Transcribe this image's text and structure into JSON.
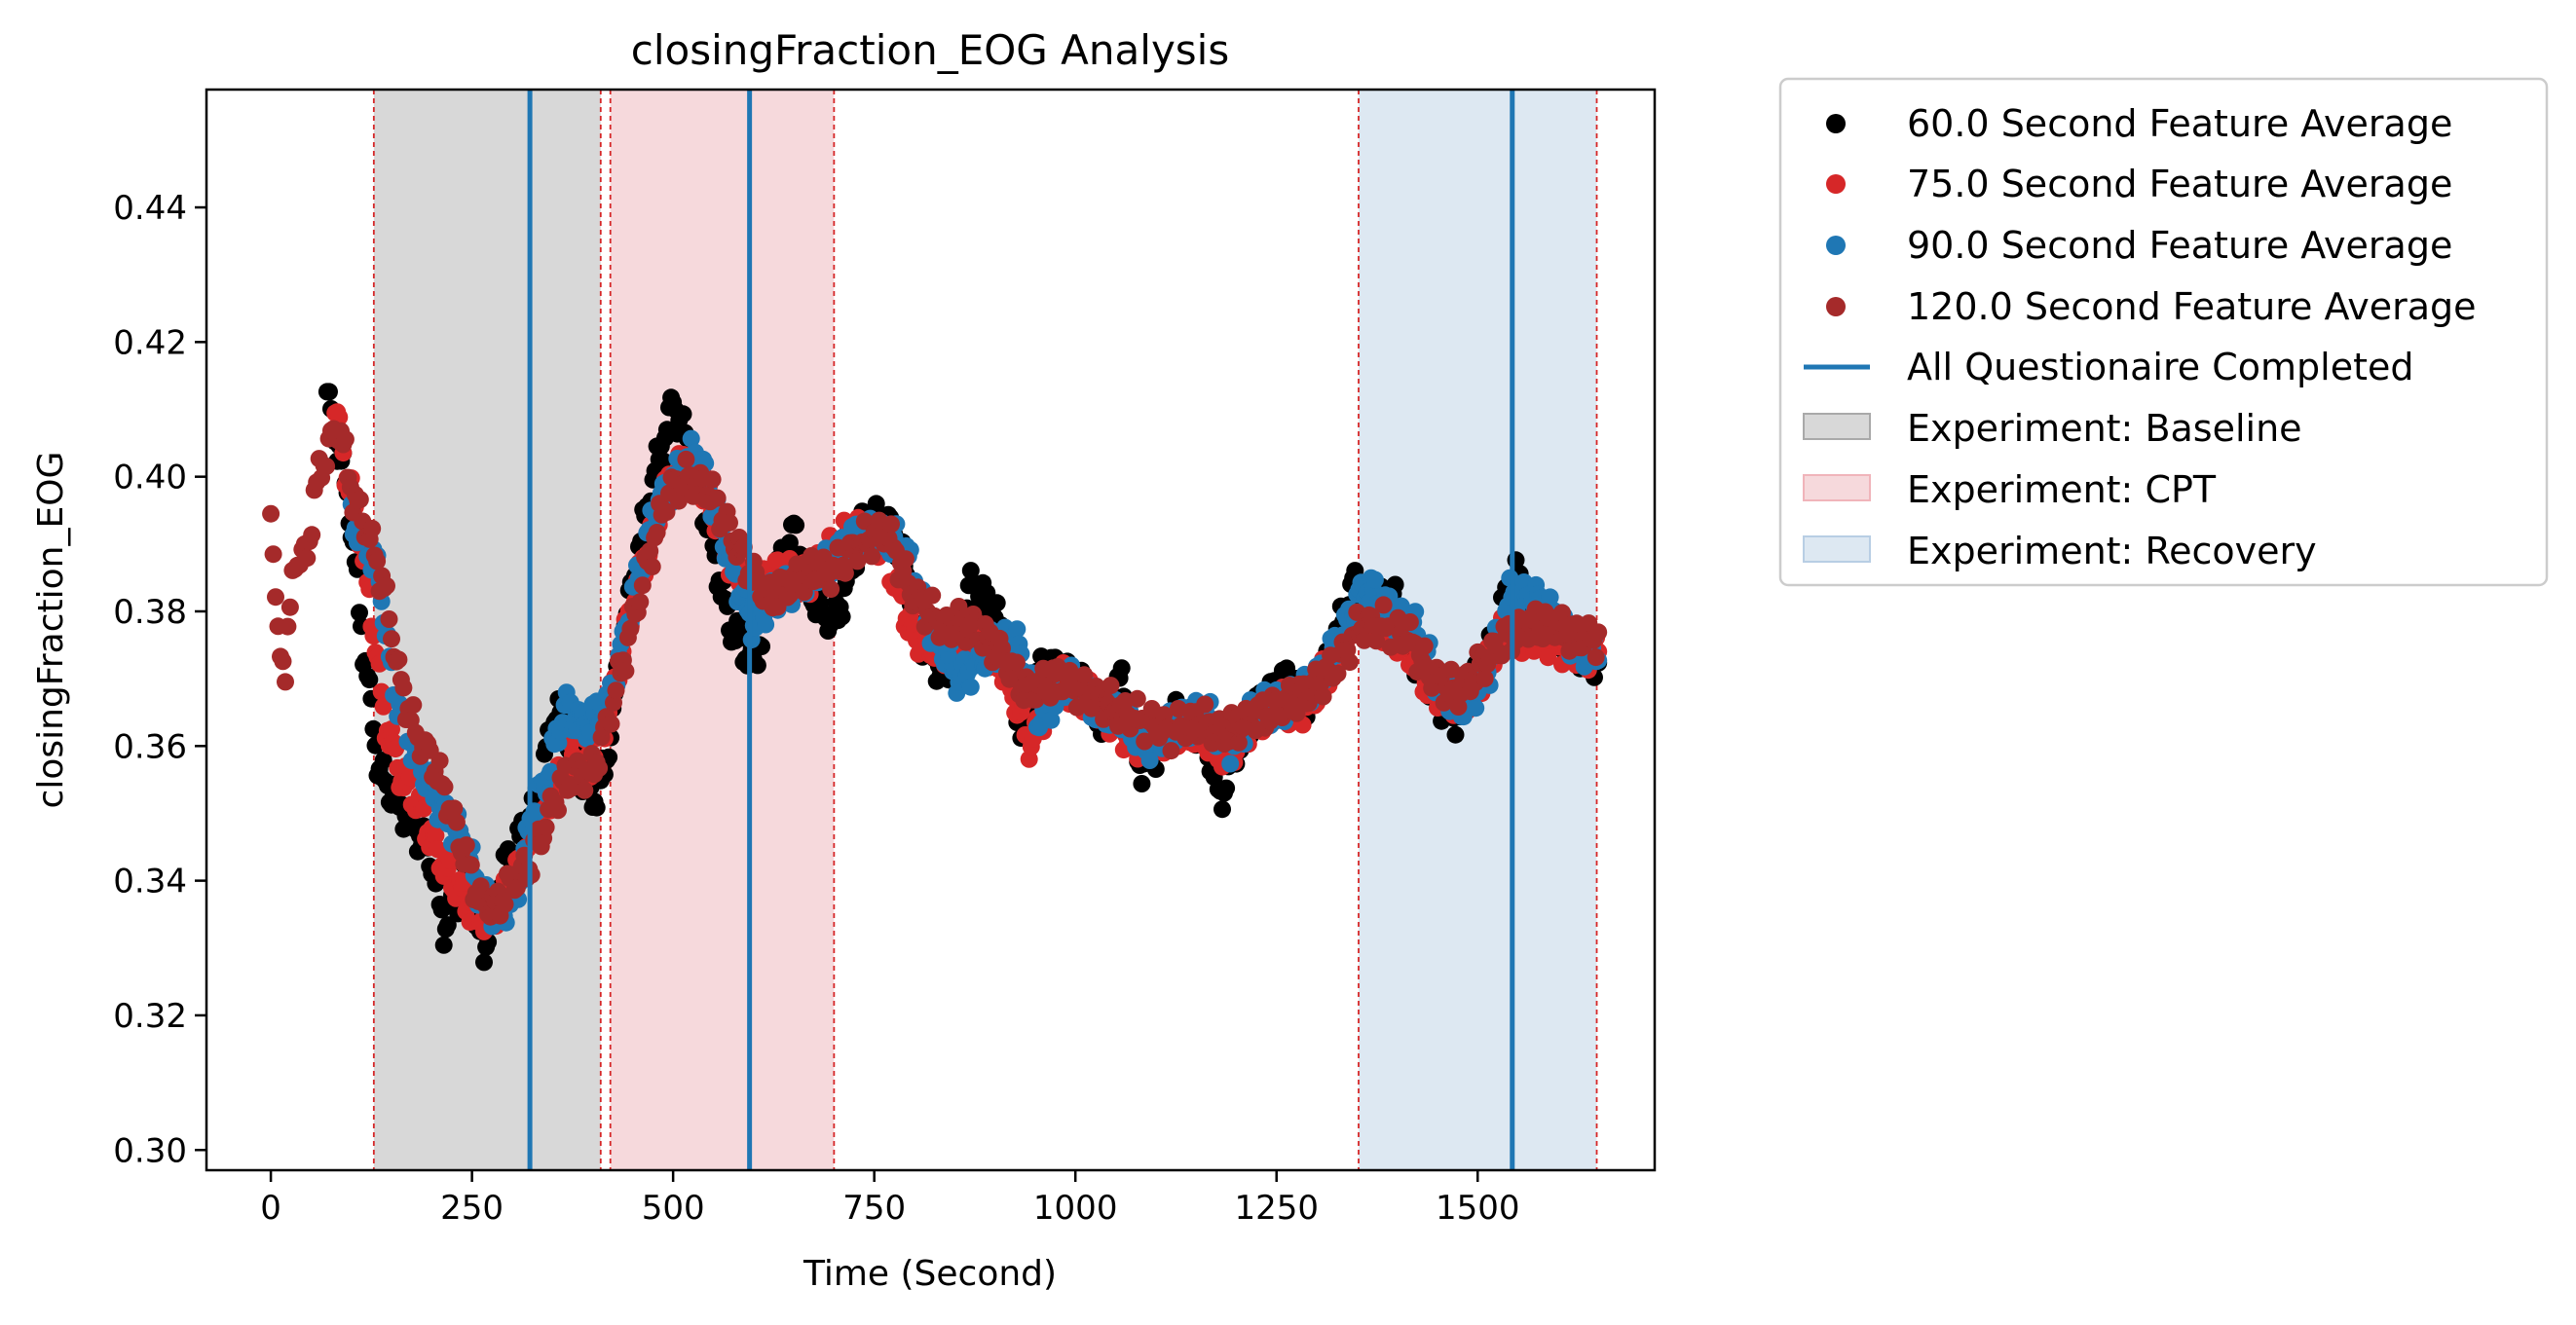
{
  "chart_data": {
    "type": "scatter",
    "title": "closingFraction_EOG Analysis",
    "xlabel": "Time (Second)",
    "ylabel": "closingFraction_EOG",
    "xlim": [
      -80,
      1720
    ],
    "ylim": [
      0.297,
      0.4575
    ],
    "xticks": [
      0,
      250,
      500,
      750,
      1000,
      1250,
      1500
    ],
    "yticks": [
      0.3,
      0.32,
      0.34,
      0.36,
      0.38,
      0.4,
      0.42,
      0.44
    ],
    "xtick_labels": [
      "0",
      "250",
      "500",
      "750",
      "1000",
      "1250",
      "1500"
    ],
    "ytick_labels": [
      "0.30",
      "0.32",
      "0.34",
      "0.36",
      "0.38",
      "0.40",
      "0.42",
      "0.44"
    ],
    "grid": false,
    "legend_position": "outside-right-top",
    "regions": [
      {
        "name": "Experiment: Baseline",
        "start": 128,
        "end": 410,
        "color": "#d8d8d8"
      },
      {
        "name": "Experiment: CPT",
        "start": 422,
        "end": 700,
        "color": "#f6d9dc"
      },
      {
        "name": "Experiment: Recovery",
        "start": 1352,
        "end": 1648,
        "color": "#dde8f2"
      }
    ],
    "questionnaire_lines": {
      "name": "All Questionaire Completed",
      "x": [
        322,
        595,
        1543
      ],
      "color": "#1f77b4"
    },
    "series": [
      {
        "name": "60.0 Second Feature Average",
        "color": "#000000",
        "anchors": [
          [
            70,
            0.412
          ],
          [
            82,
            0.405
          ],
          [
            95,
            0.398
          ],
          [
            115,
            0.375
          ],
          [
            135,
            0.356
          ],
          [
            155,
            0.352
          ],
          [
            175,
            0.349
          ],
          [
            200,
            0.343
          ],
          [
            215,
            0.333
          ],
          [
            240,
            0.34
          ],
          [
            265,
            0.33
          ],
          [
            290,
            0.342
          ],
          [
            310,
            0.346
          ],
          [
            330,
            0.352
          ],
          [
            355,
            0.366
          ],
          [
            375,
            0.36
          ],
          [
            400,
            0.352
          ],
          [
            415,
            0.356
          ],
          [
            440,
            0.378
          ],
          [
            470,
            0.397
          ],
          [
            500,
            0.411
          ],
          [
            520,
            0.404
          ],
          [
            545,
            0.392
          ],
          [
            570,
            0.378
          ],
          [
            600,
            0.372
          ],
          [
            625,
            0.384
          ],
          [
            650,
            0.392
          ],
          [
            675,
            0.382
          ],
          [
            700,
            0.378
          ],
          [
            740,
            0.394
          ],
          [
            775,
            0.392
          ],
          [
            810,
            0.376
          ],
          [
            840,
            0.37
          ],
          [
            870,
            0.384
          ],
          [
            900,
            0.38
          ],
          [
            935,
            0.362
          ],
          [
            960,
            0.372
          ],
          [
            1000,
            0.37
          ],
          [
            1030,
            0.364
          ],
          [
            1055,
            0.37
          ],
          [
            1080,
            0.357
          ],
          [
            1105,
            0.36
          ],
          [
            1130,
            0.365
          ],
          [
            1160,
            0.362
          ],
          [
            1180,
            0.352
          ],
          [
            1200,
            0.36
          ],
          [
            1230,
            0.366
          ],
          [
            1260,
            0.37
          ],
          [
            1290,
            0.366
          ],
          [
            1320,
            0.374
          ],
          [
            1345,
            0.384
          ],
          [
            1370,
            0.38
          ],
          [
            1395,
            0.382
          ],
          [
            1420,
            0.374
          ],
          [
            1445,
            0.368
          ],
          [
            1470,
            0.364
          ],
          [
            1500,
            0.37
          ],
          [
            1520,
            0.376
          ],
          [
            1545,
            0.386
          ],
          [
            1570,
            0.378
          ],
          [
            1600,
            0.376
          ],
          [
            1630,
            0.374
          ],
          [
            1650,
            0.372
          ]
        ]
      },
      {
        "name": "75.0 Second Feature Average",
        "color": "#d62728",
        "anchors": [
          [
            80,
            0.41
          ],
          [
            95,
            0.4
          ],
          [
            110,
            0.392
          ],
          [
            125,
            0.38
          ],
          [
            140,
            0.365
          ],
          [
            160,
            0.356
          ],
          [
            180,
            0.352
          ],
          [
            205,
            0.345
          ],
          [
            225,
            0.34
          ],
          [
            250,
            0.336
          ],
          [
            275,
            0.334
          ],
          [
            300,
            0.34
          ],
          [
            325,
            0.346
          ],
          [
            350,
            0.354
          ],
          [
            375,
            0.358
          ],
          [
            400,
            0.358
          ],
          [
            425,
            0.368
          ],
          [
            455,
            0.384
          ],
          [
            485,
            0.396
          ],
          [
            510,
            0.402
          ],
          [
            540,
            0.398
          ],
          [
            570,
            0.388
          ],
          [
            600,
            0.382
          ],
          [
            630,
            0.386
          ],
          [
            660,
            0.384
          ],
          [
            690,
            0.388
          ],
          [
            725,
            0.392
          ],
          [
            760,
            0.39
          ],
          [
            800,
            0.376
          ],
          [
            840,
            0.374
          ],
          [
            880,
            0.376
          ],
          [
            910,
            0.372
          ],
          [
            945,
            0.36
          ],
          [
            975,
            0.37
          ],
          [
            1010,
            0.368
          ],
          [
            1045,
            0.364
          ],
          [
            1080,
            0.36
          ],
          [
            1120,
            0.362
          ],
          [
            1160,
            0.362
          ],
          [
            1190,
            0.358
          ],
          [
            1220,
            0.364
          ],
          [
            1255,
            0.366
          ],
          [
            1290,
            0.366
          ],
          [
            1325,
            0.374
          ],
          [
            1355,
            0.38
          ],
          [
            1385,
            0.378
          ],
          [
            1415,
            0.374
          ],
          [
            1445,
            0.368
          ],
          [
            1475,
            0.366
          ],
          [
            1505,
            0.37
          ],
          [
            1535,
            0.378
          ],
          [
            1560,
            0.376
          ],
          [
            1590,
            0.376
          ],
          [
            1620,
            0.374
          ],
          [
            1650,
            0.374
          ]
        ]
      },
      {
        "name": "90.0 Second Feature Average",
        "color": "#1f77b4",
        "anchors": [
          [
            100,
            0.394
          ],
          [
            120,
            0.39
          ],
          [
            135,
            0.385
          ],
          [
            150,
            0.37
          ],
          [
            170,
            0.362
          ],
          [
            190,
            0.356
          ],
          [
            215,
            0.35
          ],
          [
            240,
            0.346
          ],
          [
            260,
            0.338
          ],
          [
            285,
            0.335
          ],
          [
            305,
            0.338
          ],
          [
            325,
            0.35
          ],
          [
            345,
            0.356
          ],
          [
            365,
            0.366
          ],
          [
            390,
            0.363
          ],
          [
            420,
            0.366
          ],
          [
            450,
            0.382
          ],
          [
            480,
            0.396
          ],
          [
            505,
            0.4
          ],
          [
            530,
            0.404
          ],
          [
            555,
            0.394
          ],
          [
            580,
            0.384
          ],
          [
            600,
            0.378
          ],
          [
            625,
            0.382
          ],
          [
            650,
            0.384
          ],
          [
            680,
            0.386
          ],
          [
            715,
            0.39
          ],
          [
            750,
            0.392
          ],
          [
            785,
            0.39
          ],
          [
            820,
            0.378
          ],
          [
            855,
            0.37
          ],
          [
            890,
            0.374
          ],
          [
            925,
            0.376
          ],
          [
            955,
            0.364
          ],
          [
            990,
            0.37
          ],
          [
            1025,
            0.366
          ],
          [
            1060,
            0.364
          ],
          [
            1095,
            0.36
          ],
          [
            1130,
            0.364
          ],
          [
            1165,
            0.364
          ],
          [
            1195,
            0.36
          ],
          [
            1230,
            0.366
          ],
          [
            1265,
            0.366
          ],
          [
            1300,
            0.37
          ],
          [
            1330,
            0.376
          ],
          [
            1360,
            0.384
          ],
          [
            1390,
            0.38
          ],
          [
            1420,
            0.378
          ],
          [
            1450,
            0.37
          ],
          [
            1480,
            0.366
          ],
          [
            1510,
            0.37
          ],
          [
            1540,
            0.382
          ],
          [
            1570,
            0.382
          ],
          [
            1600,
            0.378
          ],
          [
            1630,
            0.374
          ],
          [
            1650,
            0.374
          ]
        ]
      },
      {
        "name": "120.0 Second Feature Average",
        "color": "#a52a2a",
        "anchors": [
          [
            0,
            0.396
          ],
          [
            8,
            0.376
          ],
          [
            18,
            0.372
          ],
          [
            30,
            0.388
          ],
          [
            45,
            0.388
          ],
          [
            55,
            0.398
          ],
          [
            70,
            0.404
          ],
          [
            85,
            0.408
          ],
          [
            100,
            0.398
          ],
          [
            120,
            0.392
          ],
          [
            140,
            0.384
          ],
          [
            160,
            0.37
          ],
          [
            180,
            0.362
          ],
          [
            200,
            0.358
          ],
          [
            220,
            0.352
          ],
          [
            240,
            0.344
          ],
          [
            260,
            0.337
          ],
          [
            280,
            0.336
          ],
          [
            300,
            0.34
          ],
          [
            320,
            0.342
          ],
          [
            340,
            0.348
          ],
          [
            360,
            0.354
          ],
          [
            380,
            0.356
          ],
          [
            400,
            0.356
          ],
          [
            420,
            0.364
          ],
          [
            445,
            0.376
          ],
          [
            470,
            0.388
          ],
          [
            495,
            0.398
          ],
          [
            520,
            0.4
          ],
          [
            545,
            0.398
          ],
          [
            570,
            0.392
          ],
          [
            595,
            0.386
          ],
          [
            620,
            0.382
          ],
          [
            645,
            0.384
          ],
          [
            670,
            0.386
          ],
          [
            700,
            0.386
          ],
          [
            730,
            0.39
          ],
          [
            765,
            0.392
          ],
          [
            800,
            0.382
          ],
          [
            835,
            0.378
          ],
          [
            870,
            0.378
          ],
          [
            905,
            0.374
          ],
          [
            940,
            0.368
          ],
          [
            975,
            0.37
          ],
          [
            1010,
            0.368
          ],
          [
            1045,
            0.366
          ],
          [
            1080,
            0.364
          ],
          [
            1115,
            0.362
          ],
          [
            1150,
            0.364
          ],
          [
            1185,
            0.362
          ],
          [
            1220,
            0.364
          ],
          [
            1255,
            0.366
          ],
          [
            1290,
            0.368
          ],
          [
            1325,
            0.372
          ],
          [
            1355,
            0.378
          ],
          [
            1385,
            0.378
          ],
          [
            1415,
            0.376
          ],
          [
            1445,
            0.37
          ],
          [
            1475,
            0.368
          ],
          [
            1505,
            0.372
          ],
          [
            1535,
            0.376
          ],
          [
            1565,
            0.378
          ],
          [
            1595,
            0.378
          ],
          [
            1625,
            0.376
          ],
          [
            1650,
            0.376
          ]
        ]
      }
    ]
  }
}
